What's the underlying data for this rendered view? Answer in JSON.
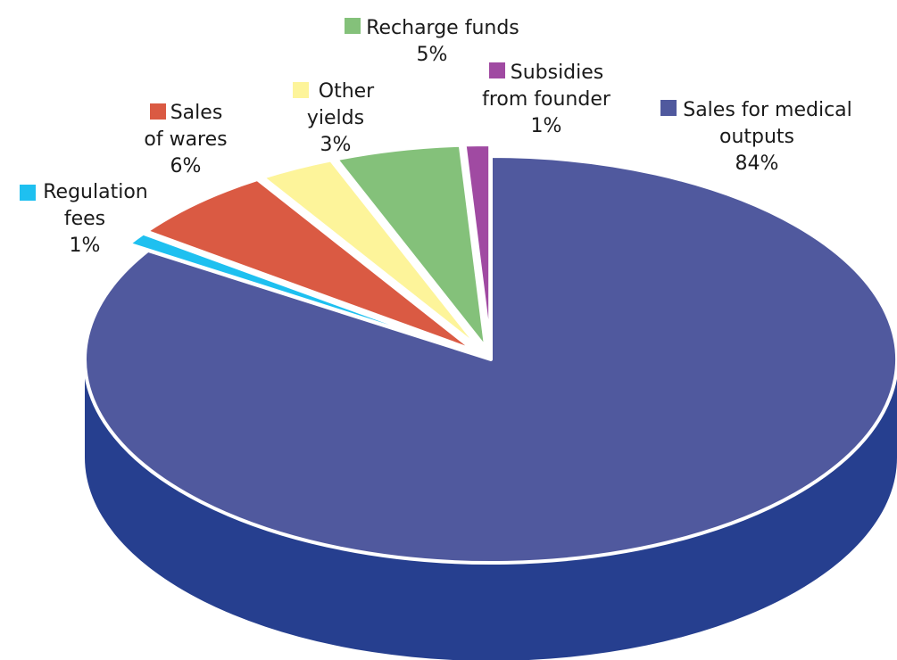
{
  "chart_data": {
    "type": "pie",
    "style": "3d-exploded",
    "slices": [
      {
        "label": "Sales for medical outputs",
        "label_lines": [
          "Sales for medical",
          "outputs"
        ],
        "value": 84,
        "value_label": "84%",
        "color": "#50599e",
        "side_color": "#263f8f"
      },
      {
        "label": "Regulation fees",
        "label_lines": [
          "Regulation",
          "fees"
        ],
        "value": 1,
        "value_label": "1%",
        "color": "#1ec0f0",
        "side_color": "#1ea4d0"
      },
      {
        "label": "Sales of wares",
        "label_lines": [
          "Sales",
          "of wares"
        ],
        "value": 6,
        "value_label": "6%",
        "color": "#da5a43",
        "side_color": "#b8442f"
      },
      {
        "label": "Other yields",
        "label_lines": [
          "Other",
          "yields"
        ],
        "value": 3,
        "value_label": "3%",
        "color": "#fdf49a",
        "side_color": "#e8da6a"
      },
      {
        "label": "Recharge funds",
        "label_lines": [
          "Recharge funds"
        ],
        "value": 5,
        "value_label": "5%",
        "color": "#84c17a",
        "side_color": "#67a35d"
      },
      {
        "label": "Subsidies from founder",
        "label_lines": [
          "Subsidies",
          "from founder"
        ],
        "value": 1,
        "value_label": "1%",
        "color": "#a04aa2",
        "side_color": "#843a86"
      }
    ]
  }
}
